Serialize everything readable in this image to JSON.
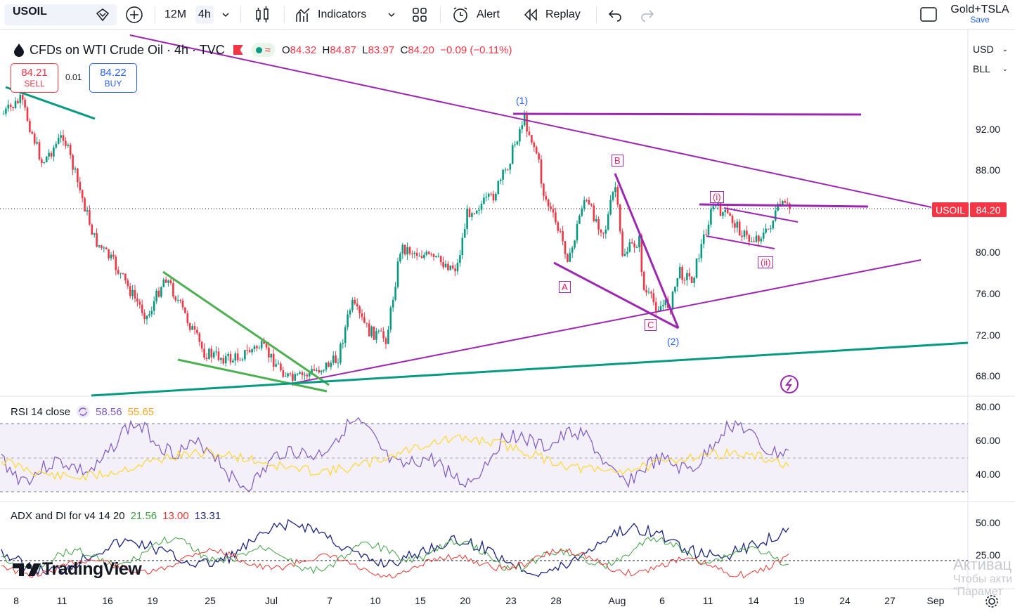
{
  "toolbar": {
    "symbol": "USOIL",
    "timeframes": [
      "12M",
      "4h"
    ],
    "active_timeframe": "4h",
    "indicators_label": "Indicators",
    "alert_label": "Alert",
    "replay_label": "Replay",
    "layout_name": "Gold+TSLA",
    "save_label": "Save"
  },
  "legend": {
    "title": "CFDs on WTI Crude Oil · 4h · TVC",
    "open_key": "O",
    "open": "84.32",
    "high_key": "H",
    "high": "84.87",
    "low_key": "L",
    "low": "83.97",
    "close_key": "C",
    "close": "84.20",
    "change": "−0.09 (−0.11%)"
  },
  "trade": {
    "sell_price": "84.21",
    "sell_label": "SELL",
    "spread": "0.01",
    "buy_price": "84.22",
    "buy_label": "BUY"
  },
  "right_panel": {
    "currency": "USD",
    "unit": "BLL"
  },
  "price_tag": {
    "symbol": "USOIL",
    "price": "84.20"
  },
  "price_axis": [
    "92.00",
    "88.00",
    "80.00",
    "76.00",
    "72.00",
    "68.00"
  ],
  "rsi": {
    "label": "RSI 14 close",
    "value1": "58.56",
    "value2": "55.65",
    "axis": [
      "80.00",
      "60.00",
      "40.00"
    ]
  },
  "adx": {
    "label": "ADX and DI for v4 14 20",
    "value1": "21.56",
    "value2": "13.00",
    "value3": "13.31",
    "axis": [
      "50.00",
      "25.00"
    ]
  },
  "time_axis": [
    "8",
    "11",
    "16",
    "19",
    "25",
    "Jul",
    "7",
    "10",
    "15",
    "20",
    "23",
    "28",
    "Aug",
    "6",
    "11",
    "14",
    "19",
    "24",
    "27",
    "Sep"
  ],
  "wave_labels": {
    "w1": "(1)",
    "w2": "(2)",
    "wi": "(i)",
    "wii": "(ii)",
    "A": "A",
    "B": "B",
    "C": "C"
  },
  "logo_text": "TradingView",
  "watermark": {
    "line1": "Активац",
    "line2": "Чтобы акти",
    "line3": "\"Парамет"
  },
  "colors": {
    "up": "#089981",
    "down": "#f23645",
    "purple": "#9c27b0",
    "green_line": "#089981",
    "rsi": "#7e57c2",
    "rsi_ma": "#fdd835"
  }
}
